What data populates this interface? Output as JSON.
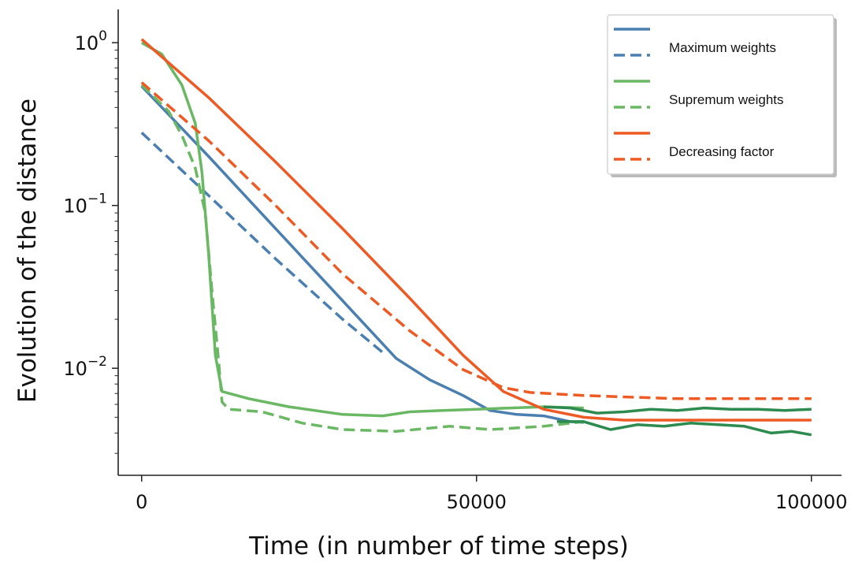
{
  "chart_data": {
    "type": "line",
    "xlabel": "Time (in number of time steps)",
    "ylabel": "Evolution of the distance",
    "xlim": [
      -3500,
      104500
    ],
    "ylim": [
      0.0022,
      1.6
    ],
    "yscale": "log",
    "x_ticks": [
      0,
      50000,
      100000
    ],
    "x_tick_labels": [
      "0",
      "50000",
      "100000"
    ],
    "y_ticks": [
      1,
      0.1,
      0.01
    ],
    "y_tick_labels": [
      {
        "base": "10",
        "exp": "0"
      },
      {
        "base": "10",
        "exp": "−1"
      },
      {
        "base": "10",
        "exp": "−2"
      }
    ],
    "grid": false,
    "legend_position": "top-right",
    "legend": [
      {
        "label": "Maximum weights",
        "color": "#4a7fb0"
      },
      {
        "label": "Supremum weights",
        "color": "#6ab863"
      },
      {
        "label": "Decreasing factor",
        "color": "#ee5a24"
      }
    ],
    "series": [
      {
        "style": "solid",
        "color": "#4a7fb0",
        "points": [
          [
            0,
            0.54
          ],
          [
            10000,
            0.2
          ],
          [
            20000,
            0.072
          ],
          [
            30000,
            0.026
          ],
          [
            38000,
            0.0115
          ],
          [
            43000,
            0.0085
          ],
          [
            48000,
            0.0068
          ],
          [
            52000,
            0.0055
          ],
          [
            56000,
            0.0052
          ],
          [
            60000,
            0.0051
          ],
          [
            62000,
            0.0049
          ],
          [
            64000,
            0.0047
          ],
          [
            66000,
            0.00465
          ]
        ]
      },
      {
        "style": "dashed",
        "color": "#4a7fb0",
        "points": [
          [
            0,
            0.28
          ],
          [
            10000,
            0.115
          ],
          [
            20000,
            0.047
          ],
          [
            30000,
            0.02
          ],
          [
            36000,
            0.0125
          ]
        ]
      },
      {
        "style": "solid",
        "color": "#6ab863",
        "points": [
          [
            0,
            1.0
          ],
          [
            3000,
            0.85
          ],
          [
            6000,
            0.55
          ],
          [
            8000,
            0.32
          ],
          [
            9000,
            0.16
          ],
          [
            10000,
            0.05
          ],
          [
            11000,
            0.012
          ],
          [
            12000,
            0.0072
          ],
          [
            16000,
            0.0065
          ],
          [
            22000,
            0.0058
          ],
          [
            30000,
            0.0052
          ],
          [
            36000,
            0.0051
          ],
          [
            40000,
            0.0054
          ],
          [
            45000,
            0.0055
          ],
          [
            50000,
            0.0056
          ],
          [
            55000,
            0.0057
          ],
          [
            60000,
            0.0058
          ],
          [
            66000,
            0.0057
          ]
        ]
      },
      {
        "style": "dashed",
        "color": "#6ab863",
        "points": [
          [
            0,
            0.55
          ],
          [
            4000,
            0.38
          ],
          [
            6000,
            0.27
          ],
          [
            8000,
            0.17
          ],
          [
            9500,
            0.09
          ],
          [
            10500,
            0.03
          ],
          [
            11500,
            0.011
          ],
          [
            12000,
            0.0062
          ],
          [
            13000,
            0.0056
          ],
          [
            18000,
            0.0054
          ],
          [
            24000,
            0.0046
          ],
          [
            30000,
            0.0042
          ],
          [
            38000,
            0.0041
          ],
          [
            46000,
            0.0044
          ],
          [
            52000,
            0.0042
          ],
          [
            60000,
            0.0044
          ],
          [
            66000,
            0.0047
          ]
        ]
      },
      {
        "style": "solid",
        "color": "#2e8b4f",
        "points": [
          [
            60000,
            0.0058
          ],
          [
            64000,
            0.0057
          ],
          [
            68000,
            0.0053
          ],
          [
            72000,
            0.0054
          ],
          [
            76000,
            0.0056
          ],
          [
            80000,
            0.0055
          ],
          [
            84000,
            0.0057
          ],
          [
            88000,
            0.0056
          ],
          [
            92000,
            0.0056
          ],
          [
            96000,
            0.0055
          ],
          [
            100000,
            0.0056
          ]
        ]
      },
      {
        "style": "solid",
        "color": "#2e8b4f",
        "points": [
          [
            62000,
            0.0047
          ],
          [
            66000,
            0.0047
          ],
          [
            70000,
            0.0042
          ],
          [
            74000,
            0.0045
          ],
          [
            78000,
            0.0044
          ],
          [
            82000,
            0.0046
          ],
          [
            86000,
            0.0045
          ],
          [
            90000,
            0.0044
          ],
          [
            94000,
            0.004
          ],
          [
            97000,
            0.0041
          ],
          [
            100000,
            0.0039
          ]
        ]
      },
      {
        "style": "solid",
        "color": "#ee5a24",
        "points": [
          [
            0,
            1.05
          ],
          [
            10000,
            0.46
          ],
          [
            20000,
            0.185
          ],
          [
            30000,
            0.072
          ],
          [
            40000,
            0.027
          ],
          [
            48000,
            0.012
          ],
          [
            54000,
            0.0072
          ],
          [
            60000,
            0.0056
          ],
          [
            66000,
            0.005
          ],
          [
            72000,
            0.0048
          ],
          [
            80000,
            0.0048
          ],
          [
            90000,
            0.0048
          ],
          [
            100000,
            0.0048
          ]
        ]
      },
      {
        "style": "dashed",
        "color": "#ee5a24",
        "points": [
          [
            0,
            0.57
          ],
          [
            10000,
            0.25
          ],
          [
            20000,
            0.1
          ],
          [
            30000,
            0.038
          ],
          [
            40000,
            0.017
          ],
          [
            48000,
            0.0098
          ],
          [
            54000,
            0.0076
          ],
          [
            58000,
            0.0071
          ],
          [
            66000,
            0.0068
          ],
          [
            80000,
            0.0065
          ],
          [
            90000,
            0.0065
          ],
          [
            100000,
            0.0065
          ]
        ]
      }
    ]
  }
}
